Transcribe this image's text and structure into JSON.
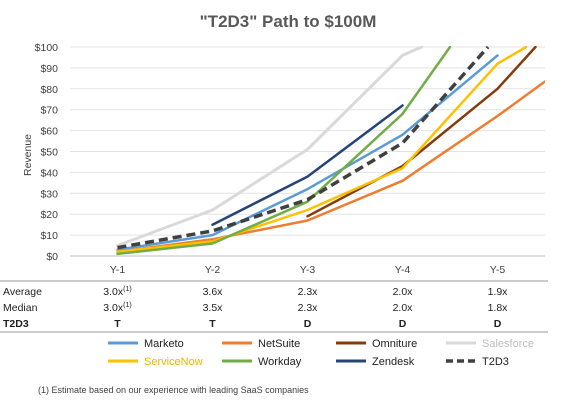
{
  "chart_data": {
    "type": "line",
    "title": "\"T2D3\" Path to $100M",
    "ylabel": "Revenue",
    "xlabel": "",
    "categories": [
      "Y-1",
      "Y-2",
      "Y-3",
      "Y-4",
      "Y-5"
    ],
    "ylim": [
      0,
      100
    ],
    "yticks": [
      "$0",
      "$10",
      "$20",
      "$30",
      "$40",
      "$50",
      "$60",
      "$70",
      "$80",
      "$90",
      "$100"
    ],
    "grid": true,
    "legend_position": "bottom",
    "series": [
      {
        "name": "Salesforce",
        "color": "#d9d9d9",
        "width": 3,
        "dash": false,
        "points": [
          [
            0,
            5
          ],
          [
            1,
            22
          ],
          [
            2,
            51
          ],
          [
            3,
            96
          ],
          [
            3.2,
            100
          ]
        ]
      },
      {
        "name": "Marketo",
        "color": "#5b9bd5",
        "width": 2.5,
        "dash": false,
        "points": [
          [
            0,
            3
          ],
          [
            1,
            10
          ],
          [
            2,
            32
          ],
          [
            3,
            58
          ],
          [
            4,
            96
          ]
        ]
      },
      {
        "name": "NetSuite",
        "color": "#ed7d31",
        "width": 2.5,
        "dash": false,
        "points": [
          [
            0,
            2
          ],
          [
            1,
            8
          ],
          [
            2,
            17
          ],
          [
            3,
            36
          ],
          [
            4,
            67
          ],
          [
            5,
            100
          ]
        ]
      },
      {
        "name": "Omniture",
        "color": "#843c0c",
        "width": 2.5,
        "dash": false,
        "points": [
          [
            2,
            19
          ],
          [
            3,
            43
          ],
          [
            4,
            80
          ],
          [
            4.4,
            100
          ]
        ]
      },
      {
        "name": "ServiceNow",
        "color": "#ffc000",
        "width": 2.5,
        "dash": false,
        "points": [
          [
            0,
            2
          ],
          [
            1,
            7
          ],
          [
            2,
            22
          ],
          [
            3,
            42
          ],
          [
            4,
            92
          ],
          [
            4.3,
            100
          ]
        ]
      },
      {
        "name": "Workday",
        "color": "#70ad47",
        "width": 2.5,
        "dash": false,
        "points": [
          [
            0,
            1
          ],
          [
            1,
            6
          ],
          [
            2,
            26
          ],
          [
            3,
            68
          ],
          [
            3.5,
            100
          ]
        ]
      },
      {
        "name": "Zendesk",
        "color": "#264478",
        "width": 2.5,
        "dash": false,
        "points": [
          [
            1,
            15
          ],
          [
            2,
            38
          ],
          [
            3,
            72
          ]
        ]
      },
      {
        "name": "T2D3",
        "color": "#404040",
        "width": 3.5,
        "dash": true,
        "points": [
          [
            0,
            4
          ],
          [
            1,
            12
          ],
          [
            2,
            27
          ],
          [
            3,
            54
          ],
          [
            3.9,
            100
          ]
        ]
      }
    ]
  },
  "table": {
    "rows": [
      {
        "label": "Average",
        "bold": false,
        "values": [
          [
            "3.0x",
            "(1)"
          ],
          [
            "3.6x",
            ""
          ],
          [
            "2.3x",
            ""
          ],
          [
            "2.0x",
            ""
          ],
          [
            "1.9x",
            ""
          ]
        ]
      },
      {
        "label": "Median",
        "bold": false,
        "values": [
          [
            "3.0x",
            "(1)"
          ],
          [
            "3.5x",
            ""
          ],
          [
            "2.3x",
            ""
          ],
          [
            "2.0x",
            ""
          ],
          [
            "1.8x",
            ""
          ]
        ]
      },
      {
        "label": "T2D3",
        "bold": true,
        "values": [
          [
            "T",
            ""
          ],
          [
            "T",
            ""
          ],
          [
            "D",
            ""
          ],
          [
            "D",
            ""
          ],
          [
            "D",
            ""
          ]
        ]
      }
    ]
  },
  "legend": [
    {
      "name": "Marketo",
      "color": "#5b9bd5",
      "dash": false
    },
    {
      "name": "NetSuite",
      "color": "#ed7d31",
      "dash": false
    },
    {
      "name": "Omniture",
      "color": "#843c0c",
      "dash": false
    },
    {
      "name": "Salesforce",
      "color": "#d9d9d9",
      "dash": false
    },
    {
      "name": "ServiceNow",
      "color": "#ffc000",
      "dash": false
    },
    {
      "name": "Workday",
      "color": "#70ad47",
      "dash": false
    },
    {
      "name": "Zendesk",
      "color": "#264478",
      "dash": false
    },
    {
      "name": "T2D3",
      "color": "#404040",
      "dash": true
    }
  ],
  "footnote": "(1)  Estimate based on our experience with leading SaaS companies"
}
